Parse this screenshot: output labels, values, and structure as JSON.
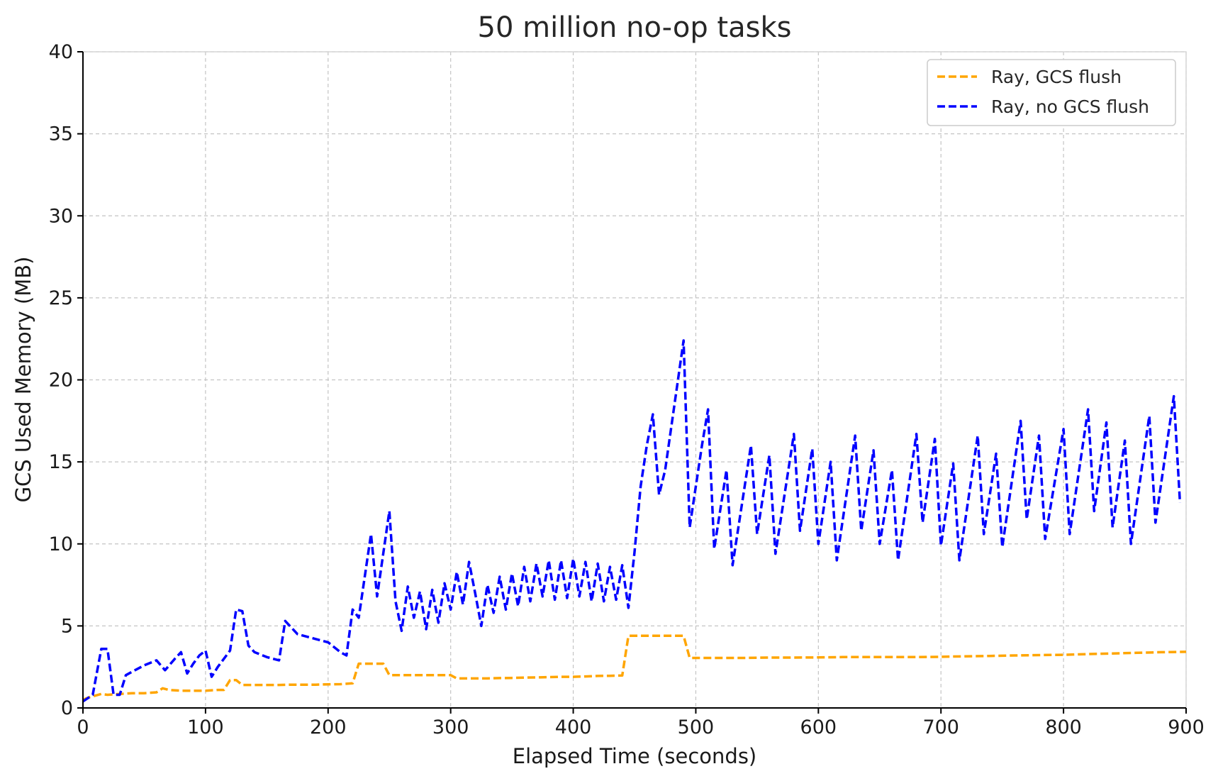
{
  "chart_data": {
    "type": "line",
    "title": "50 million no-op tasks",
    "xlabel": "Elapsed Time (seconds)",
    "ylabel": "GCS Used Memory (MB)",
    "xlim": [
      0,
      900
    ],
    "ylim": [
      0,
      40
    ],
    "xticks": [
      0,
      100,
      200,
      300,
      400,
      500,
      600,
      700,
      800,
      900
    ],
    "yticks": [
      0,
      5,
      10,
      15,
      20,
      25,
      30,
      35,
      40
    ],
    "grid": true,
    "legend": "top-right",
    "series": [
      {
        "name": "Ray, GCS flush",
        "color": "#FFA500",
        "style": "dashed",
        "points": [
          [
            0,
            0.5
          ],
          [
            5,
            0.65
          ],
          [
            10,
            0.75
          ],
          [
            15,
            0.85
          ],
          [
            20,
            0.8
          ],
          [
            30,
            0.85
          ],
          [
            40,
            0.9
          ],
          [
            50,
            0.9
          ],
          [
            60,
            0.95
          ],
          [
            65,
            1.2
          ],
          [
            70,
            1.1
          ],
          [
            80,
            1.05
          ],
          [
            90,
            1.05
          ],
          [
            100,
            1.05
          ],
          [
            110,
            1.1
          ],
          [
            115,
            1.1
          ],
          [
            120,
            1.7
          ],
          [
            125,
            1.7
          ],
          [
            130,
            1.4
          ],
          [
            140,
            1.4
          ],
          [
            150,
            1.4
          ],
          [
            160,
            1.4
          ],
          [
            170,
            1.42
          ],
          [
            180,
            1.42
          ],
          [
            190,
            1.42
          ],
          [
            200,
            1.44
          ],
          [
            210,
            1.45
          ],
          [
            220,
            1.5
          ],
          [
            225,
            2.7
          ],
          [
            235,
            2.7
          ],
          [
            245,
            2.7
          ],
          [
            250,
            2.0
          ],
          [
            260,
            2.0
          ],
          [
            270,
            2.0
          ],
          [
            280,
            2.0
          ],
          [
            290,
            2.0
          ],
          [
            300,
            2.0
          ],
          [
            305,
            1.8
          ],
          [
            310,
            1.8
          ],
          [
            320,
            1.8
          ],
          [
            330,
            1.8
          ],
          [
            340,
            1.82
          ],
          [
            350,
            1.83
          ],
          [
            360,
            1.85
          ],
          [
            370,
            1.86
          ],
          [
            380,
            1.88
          ],
          [
            390,
            1.9
          ],
          [
            400,
            1.9
          ],
          [
            410,
            1.92
          ],
          [
            420,
            1.95
          ],
          [
            430,
            1.96
          ],
          [
            440,
            1.98
          ],
          [
            445,
            4.4
          ],
          [
            455,
            4.4
          ],
          [
            465,
            4.4
          ],
          [
            475,
            4.4
          ],
          [
            485,
            4.4
          ],
          [
            490,
            4.4
          ],
          [
            495,
            3.05
          ],
          [
            500,
            3.05
          ],
          [
            520,
            3.05
          ],
          [
            540,
            3.05
          ],
          [
            560,
            3.07
          ],
          [
            580,
            3.07
          ],
          [
            600,
            3.08
          ],
          [
            620,
            3.1
          ],
          [
            640,
            3.1
          ],
          [
            660,
            3.1
          ],
          [
            680,
            3.1
          ],
          [
            700,
            3.12
          ],
          [
            720,
            3.15
          ],
          [
            740,
            3.17
          ],
          [
            760,
            3.2
          ],
          [
            780,
            3.22
          ],
          [
            800,
            3.24
          ],
          [
            820,
            3.28
          ],
          [
            840,
            3.32
          ],
          [
            860,
            3.36
          ],
          [
            880,
            3.4
          ],
          [
            900,
            3.42
          ]
        ]
      },
      {
        "name": "Ray, no GCS flush",
        "color": "#0000FF",
        "style": "dashed",
        "points": [
          [
            0,
            0.4
          ],
          [
            8,
            0.8
          ],
          [
            15,
            3.6
          ],
          [
            20,
            3.6
          ],
          [
            25,
            0.8
          ],
          [
            30,
            0.8
          ],
          [
            35,
            2.0
          ],
          [
            40,
            2.2
          ],
          [
            50,
            2.6
          ],
          [
            60,
            2.9
          ],
          [
            67,
            2.3
          ],
          [
            75,
            3.0
          ],
          [
            80,
            3.4
          ],
          [
            85,
            2.1
          ],
          [
            90,
            2.7
          ],
          [
            95,
            3.2
          ],
          [
            100,
            3.5
          ],
          [
            105,
            1.9
          ],
          [
            110,
            2.5
          ],
          [
            120,
            3.5
          ],
          [
            125,
            6.0
          ],
          [
            130,
            5.9
          ],
          [
            135,
            3.8
          ],
          [
            140,
            3.4
          ],
          [
            150,
            3.1
          ],
          [
            160,
            2.9
          ],
          [
            165,
            5.3
          ],
          [
            175,
            4.5
          ],
          [
            190,
            4.2
          ],
          [
            200,
            4.0
          ],
          [
            210,
            3.4
          ],
          [
            215,
            3.2
          ],
          [
            220,
            6.0
          ],
          [
            225,
            5.5
          ],
          [
            235,
            10.6
          ],
          [
            240,
            6.8
          ],
          [
            250,
            12.0
          ],
          [
            255,
            6.5
          ],
          [
            260,
            4.7
          ],
          [
            265,
            7.4
          ],
          [
            270,
            5.5
          ],
          [
            275,
            7.1
          ],
          [
            280,
            4.8
          ],
          [
            285,
            7.2
          ],
          [
            290,
            5.2
          ],
          [
            295,
            7.6
          ],
          [
            300,
            6.0
          ],
          [
            305,
            8.3
          ],
          [
            310,
            6.3
          ],
          [
            315,
            8.9
          ],
          [
            320,
            7.0
          ],
          [
            325,
            5.0
          ],
          [
            330,
            7.5
          ],
          [
            335,
            5.8
          ],
          [
            340,
            8.0
          ],
          [
            345,
            6.0
          ],
          [
            350,
            8.2
          ],
          [
            355,
            6.2
          ],
          [
            360,
            8.6
          ],
          [
            365,
            6.5
          ],
          [
            370,
            8.8
          ],
          [
            375,
            6.8
          ],
          [
            380,
            9.0
          ],
          [
            385,
            6.6
          ],
          [
            390,
            9.0
          ],
          [
            395,
            6.7
          ],
          [
            400,
            9.1
          ],
          [
            405,
            6.8
          ],
          [
            410,
            8.9
          ],
          [
            415,
            6.5
          ],
          [
            420,
            8.8
          ],
          [
            425,
            6.5
          ],
          [
            430,
            8.6
          ],
          [
            435,
            6.6
          ],
          [
            440,
            8.7
          ],
          [
            445,
            6.1
          ],
          [
            450,
            9.5
          ],
          [
            455,
            13.5
          ],
          [
            460,
            16.0
          ],
          [
            465,
            17.9
          ],
          [
            470,
            13.0
          ],
          [
            475,
            14.5
          ],
          [
            490,
            22.4
          ],
          [
            495,
            11.0
          ],
          [
            505,
            16.0
          ],
          [
            510,
            18.2
          ],
          [
            515,
            9.7
          ],
          [
            525,
            14.5
          ],
          [
            530,
            8.7
          ],
          [
            545,
            16.0
          ],
          [
            550,
            10.6
          ],
          [
            560,
            15.4
          ],
          [
            565,
            9.4
          ],
          [
            580,
            16.7
          ],
          [
            585,
            10.8
          ],
          [
            595,
            15.8
          ],
          [
            600,
            10.0
          ],
          [
            610,
            15.0
          ],
          [
            615,
            9.0
          ],
          [
            630,
            16.6
          ],
          [
            635,
            10.8
          ],
          [
            645,
            15.7
          ],
          [
            650,
            10.0
          ],
          [
            660,
            14.5
          ],
          [
            665,
            9.0
          ],
          [
            680,
            16.7
          ],
          [
            685,
            11.3
          ],
          [
            695,
            16.4
          ],
          [
            700,
            9.9
          ],
          [
            710,
            14.9
          ],
          [
            715,
            9.0
          ],
          [
            730,
            16.6
          ],
          [
            735,
            10.6
          ],
          [
            745,
            15.5
          ],
          [
            750,
            9.8
          ],
          [
            765,
            17.5
          ],
          [
            770,
            11.5
          ],
          [
            780,
            16.6
          ],
          [
            785,
            10.3
          ],
          [
            800,
            17.0
          ],
          [
            805,
            10.6
          ],
          [
            820,
            18.2
          ],
          [
            825,
            12.0
          ],
          [
            835,
            17.4
          ],
          [
            840,
            11.0
          ],
          [
            850,
            16.3
          ],
          [
            855,
            10.0
          ],
          [
            870,
            17.8
          ],
          [
            875,
            11.3
          ],
          [
            890,
            19.0
          ],
          [
            895,
            12.5
          ]
        ]
      }
    ]
  }
}
